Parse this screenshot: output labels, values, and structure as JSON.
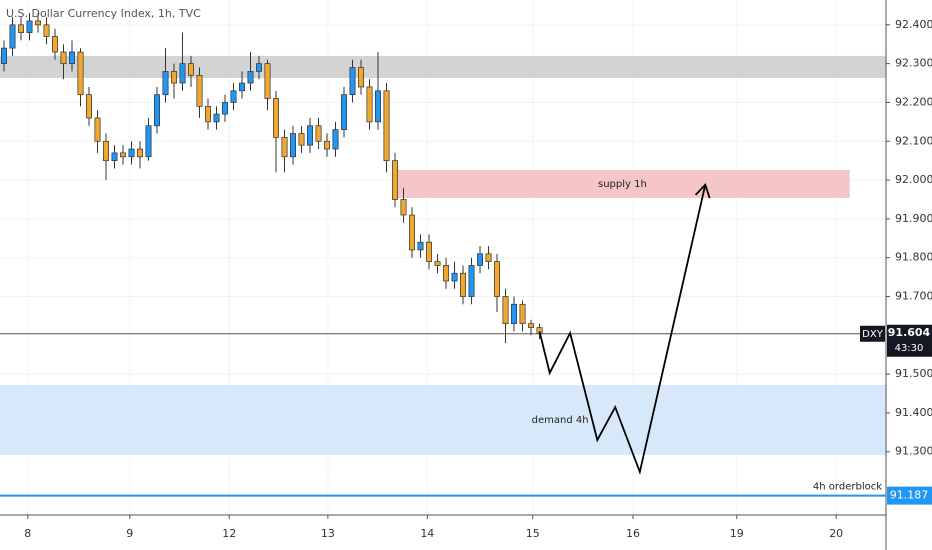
{
  "chart_data": {
    "type": "candlestick",
    "title": "U.S. Dollar Currency Index, 1h, TVC",
    "up_color": "#2196f3",
    "down_color": "#f0a830",
    "open": [
      92.3,
      92.34,
      92.4,
      92.38,
      92.41,
      92.4,
      92.37,
      92.33,
      92.3,
      92.33,
      92.22,
      92.16,
      92.1,
      92.05,
      92.07,
      92.06,
      92.08,
      92.06,
      92.14,
      92.22,
      92.28,
      92.25,
      92.3,
      92.27,
      92.19,
      92.15,
      92.17,
      92.2,
      92.23,
      92.25,
      92.28,
      92.3,
      92.21,
      92.11,
      92.06,
      92.12,
      92.09,
      92.14,
      92.1,
      92.08,
      92.13,
      92.22,
      92.29,
      92.24,
      92.15,
      92.23,
      92.05,
      91.95,
      91.91,
      91.82,
      91.84,
      91.79,
      91.78,
      91.74,
      91.76,
      91.7,
      91.78,
      91.81,
      91.79,
      91.7,
      91.63,
      91.68,
      91.63,
      91.62
    ],
    "high": [
      92.36,
      92.42,
      92.42,
      92.43,
      92.43,
      92.42,
      92.39,
      92.35,
      92.36,
      92.34,
      92.24,
      92.18,
      92.12,
      92.09,
      92.09,
      92.1,
      92.1,
      92.16,
      92.24,
      92.34,
      92.3,
      92.38,
      92.32,
      92.29,
      92.21,
      92.19,
      92.22,
      92.25,
      92.28,
      92.33,
      92.32,
      92.31,
      92.23,
      92.13,
      92.14,
      92.14,
      92.16,
      92.16,
      92.12,
      92.15,
      92.24,
      92.31,
      92.31,
      92.26,
      92.33,
      92.25,
      92.07,
      91.98,
      91.93,
      91.86,
      91.86,
      91.81,
      91.8,
      91.79,
      91.78,
      91.8,
      91.83,
      91.83,
      91.81,
      91.72,
      91.7,
      91.69,
      91.64,
      91.63
    ],
    "low": [
      92.28,
      92.32,
      92.36,
      92.36,
      92.38,
      92.35,
      92.31,
      92.26,
      92.28,
      92.19,
      92.14,
      92.07,
      92.0,
      92.03,
      92.04,
      92.04,
      92.03,
      92.05,
      92.12,
      92.2,
      92.21,
      92.23,
      92.24,
      92.16,
      92.13,
      92.13,
      92.15,
      92.18,
      92.21,
      92.23,
      92.26,
      92.18,
      92.02,
      92.02,
      92.04,
      92.07,
      92.07,
      92.08,
      92.06,
      92.06,
      92.11,
      92.2,
      92.22,
      92.13,
      92.13,
      92.02,
      91.93,
      91.89,
      91.8,
      91.8,
      91.77,
      91.76,
      91.72,
      91.72,
      91.68,
      91.68,
      91.76,
      91.77,
      91.66,
      91.58,
      91.61,
      91.61,
      91.6,
      91.59
    ],
    "close": [
      92.34,
      92.4,
      92.38,
      92.41,
      92.4,
      92.37,
      92.33,
      92.3,
      92.33,
      92.22,
      92.16,
      92.1,
      92.05,
      92.07,
      92.06,
      92.08,
      92.06,
      92.14,
      92.22,
      92.28,
      92.25,
      92.3,
      92.27,
      92.19,
      92.15,
      92.17,
      92.2,
      92.23,
      92.25,
      92.28,
      92.3,
      92.21,
      92.11,
      92.06,
      92.12,
      92.09,
      92.14,
      92.1,
      92.08,
      92.13,
      92.22,
      92.29,
      92.24,
      92.15,
      92.23,
      92.05,
      91.95,
      91.91,
      91.82,
      91.84,
      91.79,
      91.78,
      91.74,
      91.76,
      91.7,
      91.78,
      91.81,
      91.79,
      91.7,
      91.63,
      91.68,
      91.63,
      91.62,
      91.604
    ],
    "xlim": [
      -0.47,
      103.76
    ],
    "xticks": [
      {
        "value": 2.8,
        "label": "8"
      },
      {
        "value": 14.8,
        "label": "9"
      },
      {
        "value": 26.5,
        "label": "12"
      },
      {
        "value": 38.1,
        "label": "13"
      },
      {
        "value": 49.8,
        "label": "14"
      },
      {
        "value": 62.2,
        "label": "15"
      },
      {
        "value": 74,
        "label": "16"
      },
      {
        "value": 86.2,
        "label": "19"
      },
      {
        "value": 97.9,
        "label": "20"
      }
    ],
    "ylim": [
      91.137,
      92.464
    ],
    "yticks": [
      {
        "value": 91.3,
        "label": "91.300"
      },
      {
        "value": 91.4,
        "label": "91.400"
      },
      {
        "value": 91.5,
        "label": "91.500"
      },
      {
        "value": 91.7,
        "label": "91.700"
      },
      {
        "value": 91.8,
        "label": "91.800"
      },
      {
        "value": 91.9,
        "label": "91.900"
      },
      {
        "value": 92.0,
        "label": "92.000"
      },
      {
        "value": 92.1,
        "label": "92.100"
      },
      {
        "value": 92.2,
        "label": "92.200"
      },
      {
        "value": 92.3,
        "label": "92.300"
      },
      {
        "value": 92.4,
        "label": "92.400"
      }
    ],
    "grid": true,
    "zones": [
      {
        "low": 92.263,
        "high": 92.32,
        "color": "#d3d3d3"
      },
      {
        "name": "supply 1h",
        "low": 91.954,
        "high": 92.026,
        "start": 46,
        "end": 99.5,
        "color": "#f5c6c8"
      },
      {
        "name": "demand 4h",
        "low": 91.292,
        "high": 91.472,
        "color": "#d6e8fa"
      }
    ],
    "last_price": {
      "symbol": "DXY",
      "value": 91.604,
      "label": "91.604",
      "countdown": "43:30"
    },
    "orderblock": {
      "name": "4h orderblock",
      "value": 91.187,
      "label": "91.187",
      "color": "#2196f3"
    },
    "projection": {
      "x": [
        63,
        64.2,
        66.6,
        69.8,
        71.9,
        74.8,
        82.5
      ],
      "y": [
        91.61,
        91.503,
        91.606,
        91.33,
        91.415,
        91.248,
        91.988
      ]
    }
  }
}
